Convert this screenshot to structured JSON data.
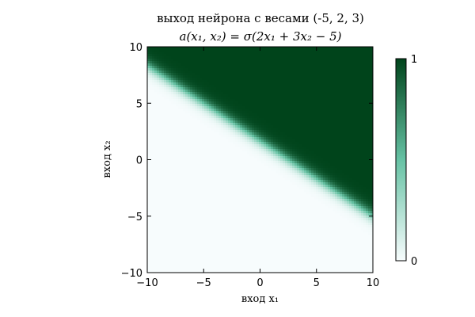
{
  "chart_data": {
    "type": "heatmap",
    "title": "выход нейрона с весами (-5, 2, 3)",
    "subtitle": "a(x₁, x₂) = σ(2x₁ + 3x₂ − 5)",
    "xlabel": "вход x₁",
    "ylabel": "вход x₂",
    "xlim": [
      -10,
      10
    ],
    "ylim": [
      -10,
      10
    ],
    "xticks": [
      -10,
      -5,
      0,
      5,
      10
    ],
    "yticks": [
      -10,
      -5,
      0,
      5,
      10
    ],
    "xtick_labels": [
      "−10",
      "−5",
      "0",
      "5",
      "10"
    ],
    "ytick_labels": [
      "−10",
      "−5",
      "0",
      "5",
      "10"
    ],
    "function": {
      "activation": "sigmoid",
      "bias": -5,
      "w1": 2,
      "w2": 3
    },
    "colormap": {
      "name": "Greens",
      "low": "#f7fcfd",
      "mid": "#66c2a4",
      "high": "#00441b"
    },
    "colorbar": {
      "min_label": "0",
      "max_label": "1",
      "min": 0,
      "max": 1,
      "placement": "right"
    },
    "grid": false
  }
}
